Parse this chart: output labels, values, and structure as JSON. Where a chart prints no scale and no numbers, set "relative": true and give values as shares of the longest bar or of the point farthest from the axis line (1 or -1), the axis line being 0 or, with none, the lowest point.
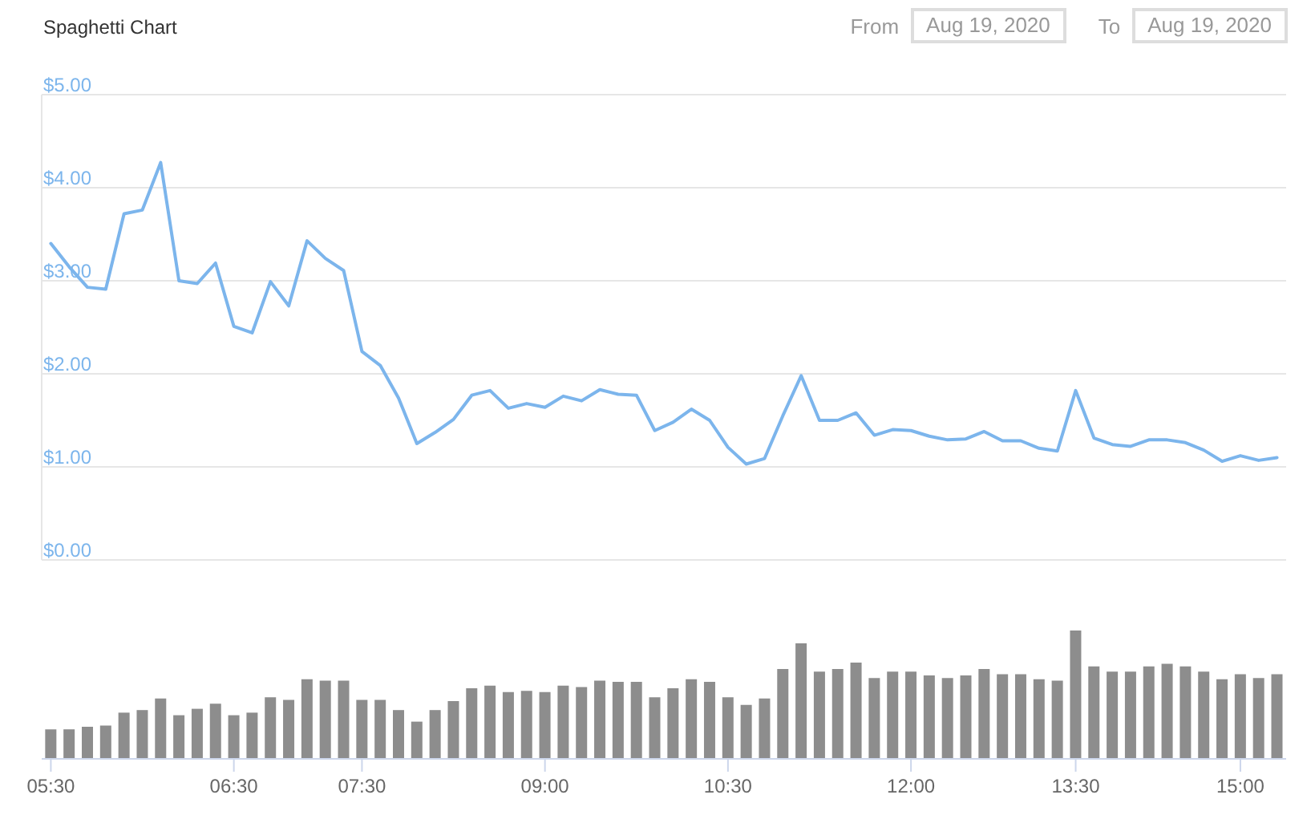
{
  "chart_data": [
    {
      "type": "line",
      "title": "Spaghetti Chart",
      "annotations": [
        "From",
        "Aug 19, 2020",
        "To",
        "Aug 19, 2020"
      ],
      "categories": [
        null,
        null,
        null,
        null,
        null,
        null,
        null,
        null,
        null,
        null,
        null,
        null,
        null,
        null,
        null,
        null,
        null,
        null,
        null,
        null,
        null,
        null,
        null,
        null,
        null,
        null,
        null,
        null,
        null,
        null,
        null,
        null,
        null,
        null,
        null,
        null,
        null,
        null,
        null,
        null,
        null,
        null,
        null,
        null,
        null,
        null,
        null,
        null,
        null,
        null,
        null,
        null,
        null,
        null,
        null,
        null,
        null,
        null,
        null,
        null,
        null,
        null,
        null,
        null,
        null,
        null,
        null,
        null
      ],
      "values": [
        3.4,
        3.15,
        2.93,
        2.91,
        3.72,
        3.76,
        4.27,
        3.0,
        2.97,
        3.19,
        2.51,
        2.44,
        2.99,
        2.73,
        3.43,
        3.24,
        3.11,
        2.24,
        2.09,
        1.74,
        1.25,
        1.37,
        1.51,
        1.77,
        1.82,
        1.63,
        1.68,
        1.64,
        1.76,
        1.71,
        1.83,
        1.78,
        1.77,
        1.39,
        1.48,
        1.62,
        1.5,
        1.21,
        1.03,
        1.09,
        1.55,
        1.98,
        1.5,
        1.5,
        1.58,
        1.34,
        1.4,
        1.39,
        1.33,
        1.29,
        1.3,
        1.38,
        1.28,
        1.28,
        1.2,
        1.17,
        1.82,
        1.31,
        1.24,
        1.22,
        1.29,
        1.29,
        1.26,
        1.18,
        1.06,
        1.12,
        1.07,
        1.1
      ],
      "color": "#7cb5ec",
      "ylim": [
        0,
        5
      ],
      "yticks": [
        {
          "value": 0,
          "label": "$0.00"
        },
        {
          "value": 1,
          "label": "$1.00"
        },
        {
          "value": 2,
          "label": "$2.00"
        },
        {
          "value": 3,
          "label": "$3.00"
        },
        {
          "value": 4,
          "label": "$4.00"
        },
        {
          "value": 5,
          "label": "$5.00"
        }
      ],
      "grid": "y",
      "tick_labels": "y"
    },
    {
      "type": "bar",
      "relative": true,
      "categories": [
        "05:30",
        null,
        null,
        null,
        null,
        null,
        null,
        null,
        null,
        null,
        "06:30",
        null,
        null,
        null,
        null,
        null,
        null,
        "07:30",
        null,
        null,
        null,
        null,
        null,
        null,
        null,
        null,
        null,
        "09:00",
        null,
        null,
        null,
        null,
        null,
        null,
        null,
        null,
        null,
        "10:30",
        null,
        null,
        null,
        null,
        null,
        null,
        null,
        null,
        null,
        "12:00",
        null,
        null,
        null,
        null,
        null,
        null,
        null,
        null,
        "13:30",
        null,
        null,
        null,
        null,
        null,
        null,
        null,
        null,
        "15:00",
        null,
        null
      ],
      "values": [
        0.23,
        0.23,
        0.25,
        0.26,
        0.36,
        0.38,
        0.47,
        0.34,
        0.39,
        0.43,
        0.34,
        0.36,
        0.48,
        0.46,
        0.62,
        0.61,
        0.61,
        0.46,
        0.46,
        0.38,
        0.29,
        0.38,
        0.45,
        0.55,
        0.57,
        0.52,
        0.53,
        0.52,
        0.57,
        0.56,
        0.61,
        0.6,
        0.6,
        0.48,
        0.55,
        0.62,
        0.6,
        0.48,
        0.42,
        0.47,
        0.7,
        0.9,
        0.68,
        0.7,
        0.75,
        0.63,
        0.68,
        0.68,
        0.65,
        0.63,
        0.65,
        0.7,
        0.66,
        0.66,
        0.62,
        0.61,
        1,
        0.72,
        0.68,
        0.68,
        0.72,
        0.74,
        0.72,
        0.68,
        0.62,
        0.66,
        0.63,
        0.66
      ],
      "color": "#8d8d8d"
    }
  ]
}
